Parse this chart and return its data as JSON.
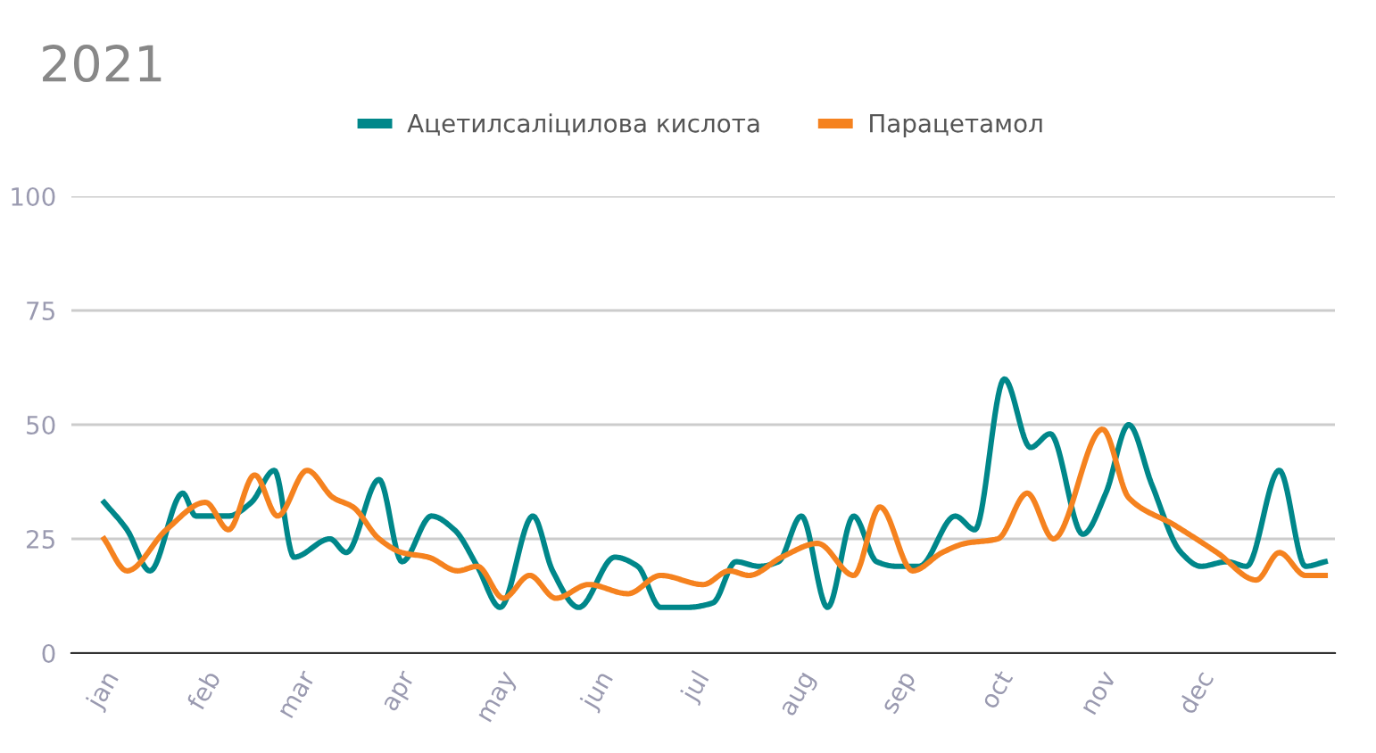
{
  "chart_data": {
    "type": "line",
    "title": "2021",
    "legend": "top",
    "grid": "y",
    "marker": "none",
    "line_style": "solid",
    "xlim": [
      "2020-12-22",
      "2022-01-12"
    ],
    "xticks": [
      {
        "value": "2021-01-01",
        "label": "jan"
      },
      {
        "value": "2021-02-01",
        "label": "feb"
      },
      {
        "value": "2021-03-01",
        "label": "mar"
      },
      {
        "value": "2021-04-01",
        "label": "apr"
      },
      {
        "value": "2021-05-01",
        "label": "may"
      },
      {
        "value": "2021-06-01",
        "label": "jun"
      },
      {
        "value": "2021-07-01",
        "label": "jul"
      },
      {
        "value": "2021-08-01",
        "label": "aug"
      },
      {
        "value": "2021-09-01",
        "label": "sep"
      },
      {
        "value": "2021-10-01",
        "label": "oct"
      },
      {
        "value": "2021-11-01",
        "label": "nov"
      },
      {
        "value": "2021-12-01",
        "label": "dec"
      }
    ],
    "ylim": [
      0,
      100
    ],
    "yticks": [
      0,
      25,
      50,
      75,
      100
    ],
    "series": [
      {
        "name": "Ацетилсаліцилова кислота",
        "color": "#00878a",
        "x": [
          "2021-01-01",
          "2021-01-08",
          "2021-01-15",
          "2021-01-25",
          "2021-01-29",
          "2021-02-08",
          "2021-02-15",
          "2021-02-22",
          "2021-02-28",
          "2021-03-11",
          "2021-03-16",
          "2021-03-26",
          "2021-04-02",
          "2021-04-11",
          "2021-04-18",
          "2021-04-25",
          "2021-05-02",
          "2021-05-12",
          "2021-05-18",
          "2021-05-26",
          "2021-06-06",
          "2021-06-13",
          "2021-06-20",
          "2021-06-28",
          "2021-07-06",
          "2021-07-13",
          "2021-07-20",
          "2021-07-26",
          "2021-08-02",
          "2021-08-10",
          "2021-08-18",
          "2021-08-25",
          "2021-08-31",
          "2021-09-07",
          "2021-09-18",
          "2021-09-24",
          "2021-10-03",
          "2021-10-11",
          "2021-10-17",
          "2021-10-27",
          "2021-11-03",
          "2021-11-10",
          "2021-11-17",
          "2021-11-26",
          "2021-12-02",
          "2021-12-10",
          "2021-12-16",
          "2021-12-26",
          "2022-01-03",
          "2022-01-09"
        ],
        "values": [
          33,
          27,
          18,
          35,
          30,
          30,
          33,
          40,
          21,
          25,
          22,
          38,
          20,
          30,
          27,
          19,
          10,
          30,
          18,
          10,
          21,
          19,
          10,
          10,
          11,
          20,
          19,
          20,
          30,
          10,
          30,
          20,
          19,
          19,
          30,
          27,
          60,
          45,
          48,
          26,
          35,
          50,
          37,
          22,
          19,
          20,
          19,
          40,
          19,
          20
        ]
      },
      {
        "name": "Парацетамол",
        "color": "#f5821f",
        "x": [
          "2021-01-01",
          "2021-01-08",
          "2021-01-20",
          "2021-02-01",
          "2021-02-08",
          "2021-02-16",
          "2021-02-23",
          "2021-03-04",
          "2021-03-12",
          "2021-03-18",
          "2021-03-26",
          "2021-04-02",
          "2021-04-10",
          "2021-04-19",
          "2021-04-25",
          "2021-05-03",
          "2021-05-11",
          "2021-05-19",
          "2021-05-29",
          "2021-06-10",
          "2021-06-20",
          "2021-07-03",
          "2021-07-11",
          "2021-07-17",
          "2021-07-27",
          "2021-08-07",
          "2021-08-18",
          "2021-08-26",
          "2021-09-05",
          "2021-09-14",
          "2021-09-21",
          "2021-10-01",
          "2021-10-10",
          "2021-10-18",
          "2021-11-02",
          "2021-11-10",
          "2021-11-24",
          "2021-12-07",
          "2021-12-19",
          "2021-12-26",
          "2022-01-03",
          "2022-01-09"
        ],
        "values": [
          25,
          18,
          27,
          33,
          27,
          39,
          30,
          40,
          34,
          32,
          25,
          22,
          21,
          18,
          19,
          12,
          17,
          12,
          15,
          13,
          17,
          15,
          18,
          17,
          21,
          24,
          17,
          32,
          18,
          22,
          24,
          25,
          35,
          25,
          49,
          34,
          28,
          22,
          16,
          22,
          17,
          17
        ]
      }
    ]
  }
}
